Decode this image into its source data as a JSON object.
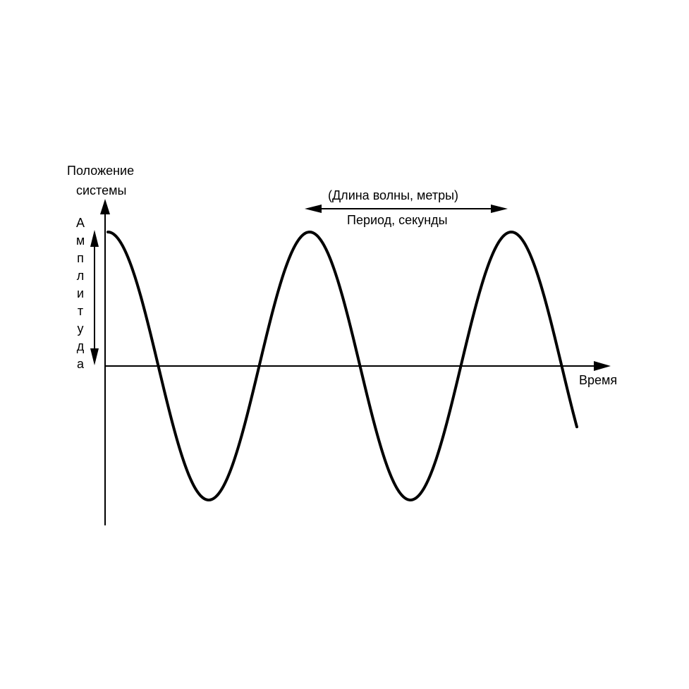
{
  "y_axis_label": {
    "line1": "Положение",
    "line2": "системы"
  },
  "x_axis_label": "Время",
  "wavelength_label": "(Длина волны, метры)",
  "period_label": "Период, секунды",
  "amplitude_letters": [
    "А",
    "м",
    "п",
    "л",
    "и",
    "т",
    "у",
    "д",
    "а"
  ],
  "colors": {
    "ink": "#000000",
    "background": "#ffffff"
  },
  "wave": {
    "function": "cosine",
    "amplitude": 1,
    "period": 2,
    "x_range": [
      0,
      4.65
    ],
    "crossings_shown": 6
  }
}
